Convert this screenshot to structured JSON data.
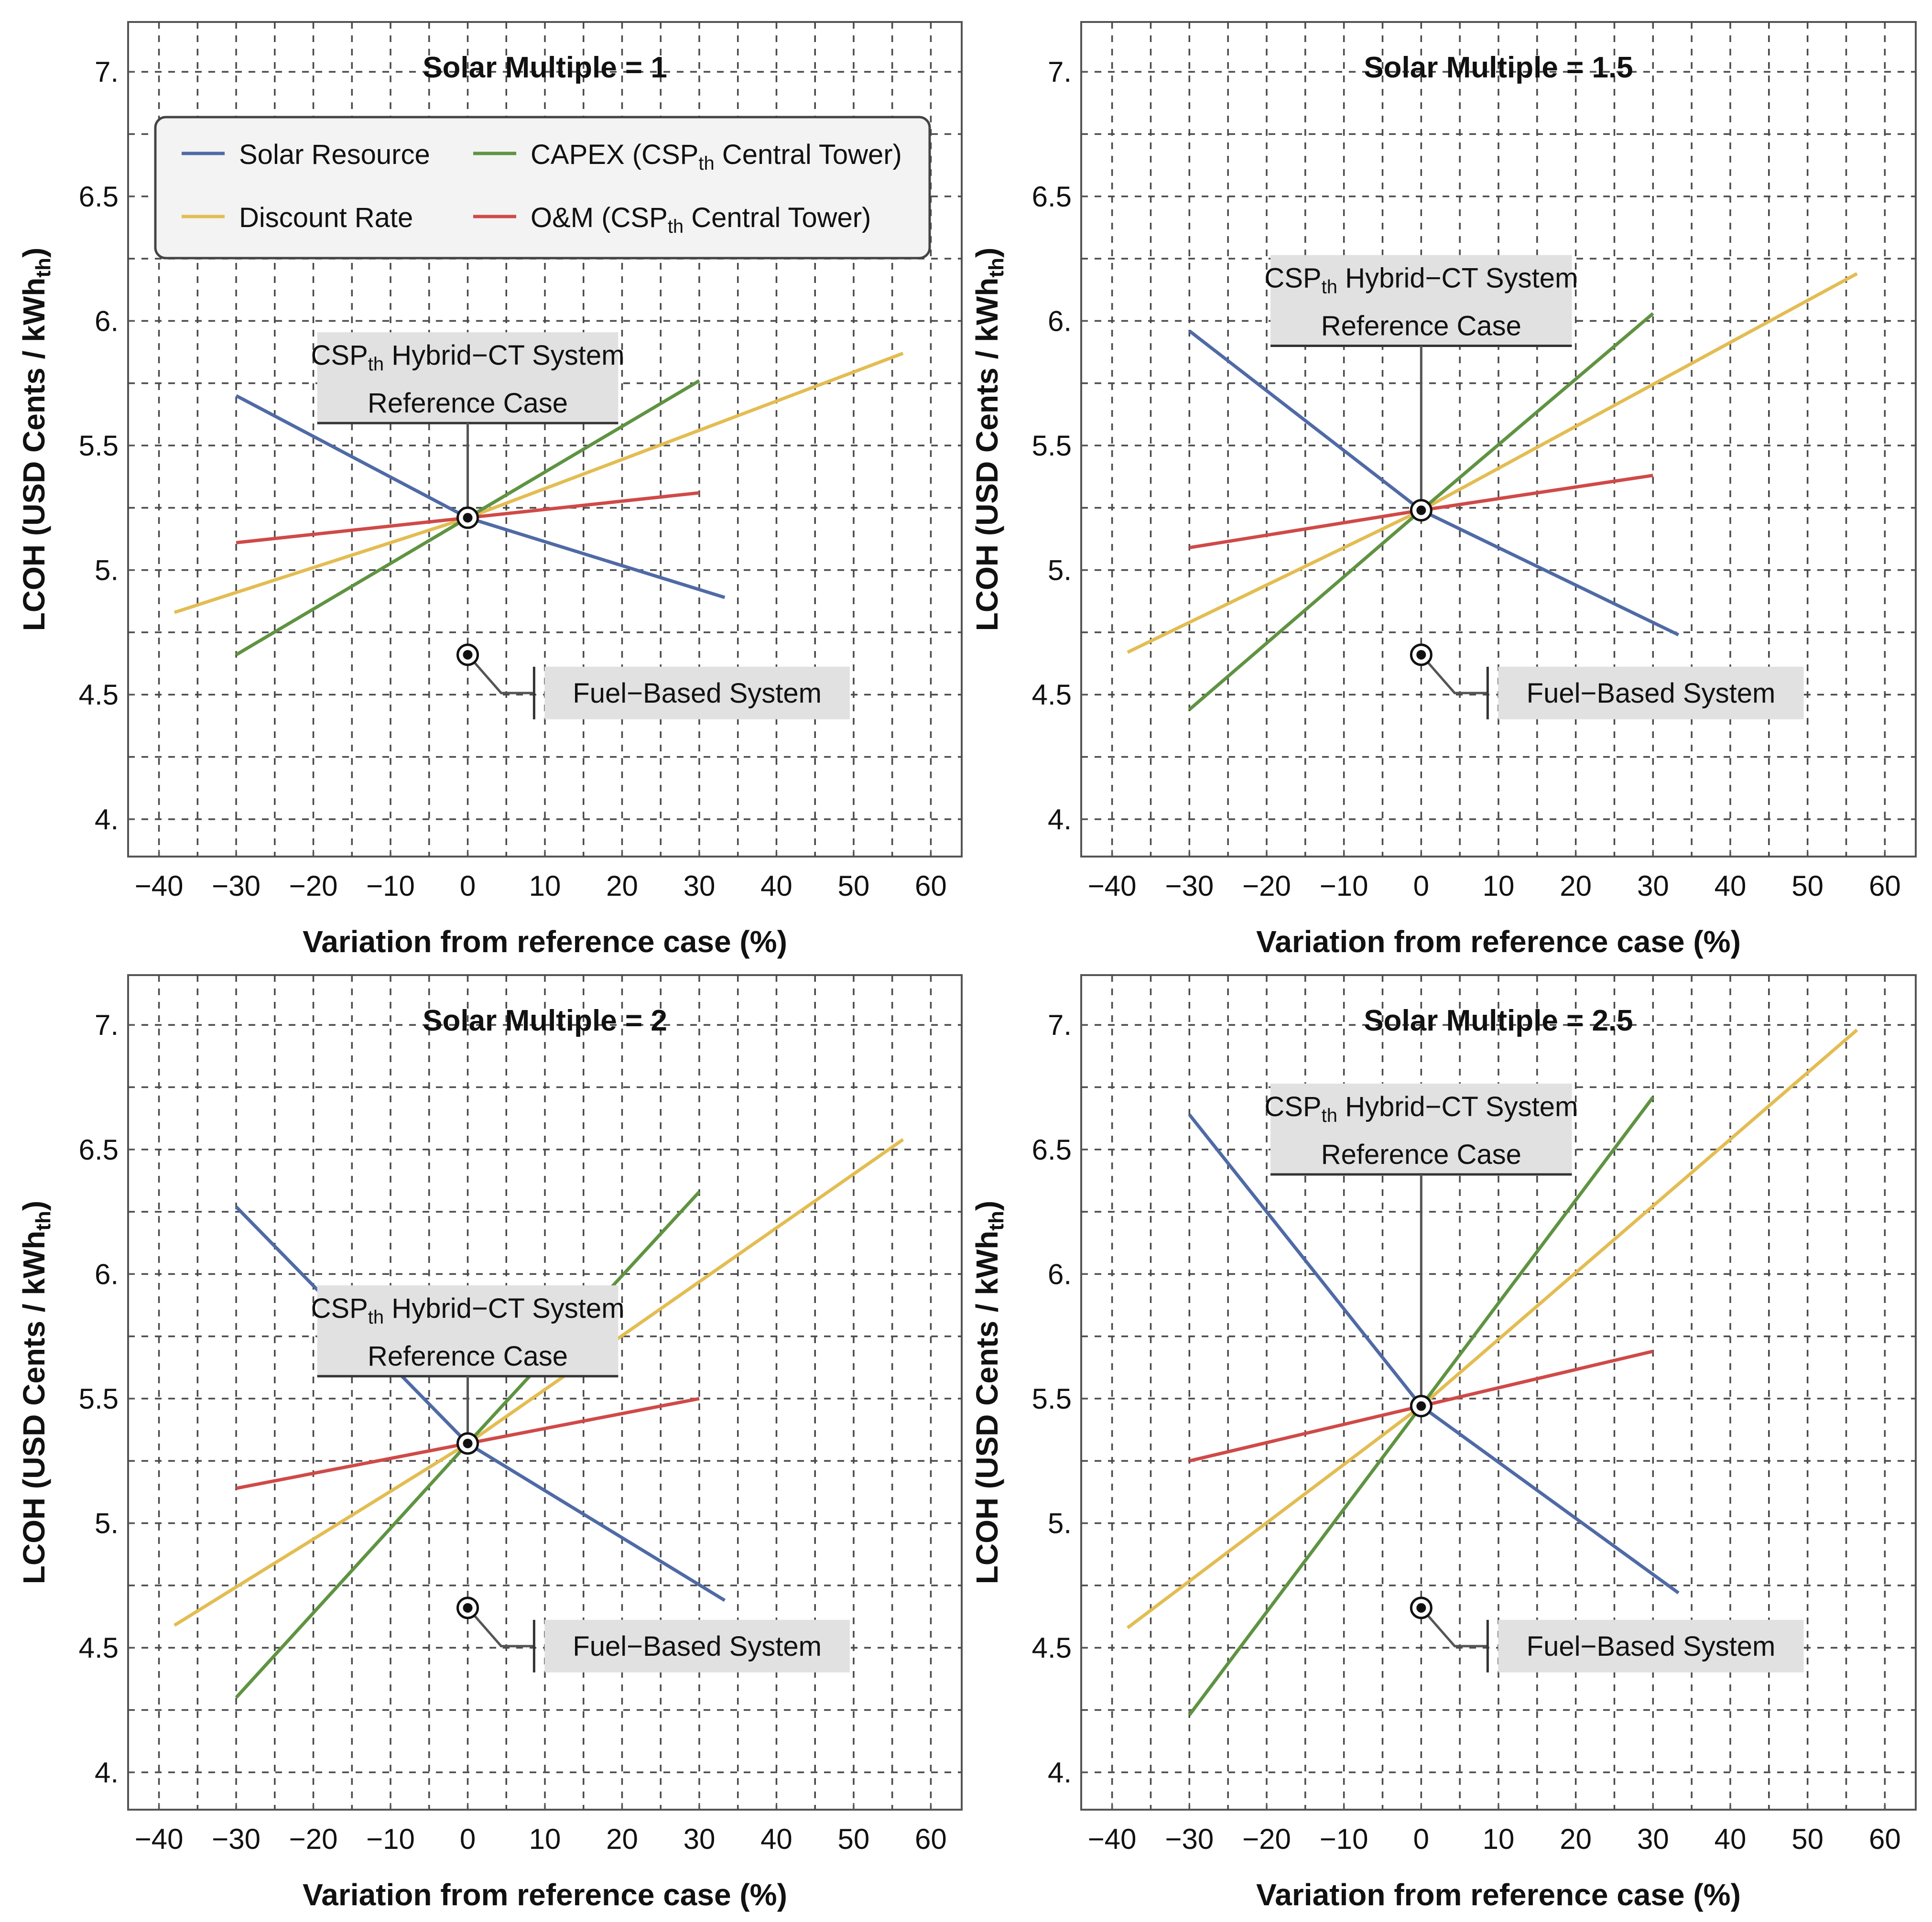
{
  "labels": {
    "reference_line1_main": "CSP",
    "reference_line1_sub": "th",
    "reference_line1_rest": " Hybrid−CT System",
    "reference_line2": "Reference Case",
    "fuel_label": "Fuel−Based System",
    "x_axis_title": "Variation from reference case (%)",
    "y_axis_title_main": "LCOH (USD Cents / kWh",
    "y_axis_title_sub": "th",
    "y_axis_title_end": ")"
  },
  "legend": [
    {
      "key": "solar",
      "label": "Solar Resource"
    },
    {
      "key": "capex",
      "label": "CAPEX (CSP",
      "sub": "th",
      "rest": " Central Tower)"
    },
    {
      "key": "discount",
      "label": "Discount Rate"
    },
    {
      "key": "om",
      "label": "O&M (CSP",
      "sub": "th",
      "rest": " Central Tower)"
    }
  ],
  "colors": {
    "solar": "#4f6aa5",
    "capex": "#5f9342",
    "discount": "#e3bd53",
    "om": "#cf4a48",
    "grid": "#4a4a4a"
  },
  "chart_data": [
    {
      "type": "line",
      "title": "Solar Multiple = 1",
      "xlabel": "Variation from reference case (%)",
      "ylabel": "LCOH (USD Cents / kWhth)",
      "xlim": [
        -44,
        64
      ],
      "ylim": [
        3.85,
        7.2
      ],
      "x_ticks": [
        -40,
        -30,
        -20,
        -10,
        0,
        10,
        20,
        30,
        40,
        50,
        60
      ],
      "x_tick_labels": [
        "−40",
        "−30",
        "−20",
        "−10",
        "0",
        "10",
        "20",
        "30",
        "40",
        "50",
        "60"
      ],
      "y_ticks": [
        4,
        4.5,
        5,
        5.5,
        6,
        6.5,
        7
      ],
      "y_tick_labels": [
        "4.",
        "4.5",
        "5.",
        "5.5",
        "6.",
        "6.5",
        "7."
      ],
      "grid": true,
      "legend_position": "top-left",
      "series": [
        {
          "key": "solar",
          "name": "Solar Resource",
          "x": [
            -30,
            0,
            33.3
          ],
          "y": [
            5.7,
            5.21,
            4.89
          ]
        },
        {
          "key": "capex",
          "name": "CAPEX (CSPth Central Tower)",
          "x": [
            -30,
            0,
            30
          ],
          "y": [
            4.66,
            5.21,
            5.76
          ]
        },
        {
          "key": "discount",
          "name": "Discount Rate",
          "x": [
            -38,
            0,
            56.4
          ],
          "y": [
            4.83,
            5.21,
            5.87
          ]
        },
        {
          "key": "om",
          "name": "O&M (CSPth Central Tower)",
          "x": [
            -30,
            0,
            30
          ],
          "y": [
            5.11,
            5.21,
            5.31
          ]
        }
      ],
      "reference_point": [
        0,
        5.21
      ],
      "fuel_point": [
        0,
        4.66
      ]
    },
    {
      "type": "line",
      "title": "Solar Multiple = 1.5",
      "xlabel": "Variation from reference case (%)",
      "ylabel": "LCOH (USD Cents / kWhth)",
      "xlim": [
        -44,
        64
      ],
      "ylim": [
        3.85,
        7.2
      ],
      "x_ticks": [
        -40,
        -30,
        -20,
        -10,
        0,
        10,
        20,
        30,
        40,
        50,
        60
      ],
      "x_tick_labels": [
        "−40",
        "−30",
        "−20",
        "−10",
        "0",
        "10",
        "20",
        "30",
        "40",
        "50",
        "60"
      ],
      "y_ticks": [
        4,
        4.5,
        5,
        5.5,
        6,
        6.5,
        7
      ],
      "y_tick_labels": [
        "4.",
        "4.5",
        "5.",
        "5.5",
        "6.",
        "6.5",
        "7."
      ],
      "grid": true,
      "series": [
        {
          "key": "solar",
          "name": "Solar Resource",
          "x": [
            -30,
            0,
            33.3
          ],
          "y": [
            5.96,
            5.24,
            4.74
          ]
        },
        {
          "key": "capex",
          "name": "CAPEX (CSPth Central Tower)",
          "x": [
            -30,
            0,
            30
          ],
          "y": [
            4.44,
            5.24,
            6.03
          ]
        },
        {
          "key": "discount",
          "name": "Discount Rate",
          "x": [
            -38,
            0,
            56.4
          ],
          "y": [
            4.67,
            5.24,
            6.19
          ]
        },
        {
          "key": "om",
          "name": "O&M (CSPth Central Tower)",
          "x": [
            -30,
            0,
            30
          ],
          "y": [
            5.09,
            5.24,
            5.38
          ]
        }
      ],
      "reference_point": [
        0,
        5.24
      ],
      "fuel_point": [
        0,
        4.66
      ]
    },
    {
      "type": "line",
      "title": "Solar Multiple = 2",
      "xlabel": "Variation from reference case (%)",
      "ylabel": "LCOH (USD Cents / kWhth)",
      "xlim": [
        -44,
        64
      ],
      "ylim": [
        3.85,
        7.2
      ],
      "x_ticks": [
        -40,
        -30,
        -20,
        -10,
        0,
        10,
        20,
        30,
        40,
        50,
        60
      ],
      "x_tick_labels": [
        "−40",
        "−30",
        "−20",
        "−10",
        "0",
        "10",
        "20",
        "30",
        "40",
        "50",
        "60"
      ],
      "y_ticks": [
        4,
        4.5,
        5,
        5.5,
        6,
        6.5,
        7
      ],
      "y_tick_labels": [
        "4.",
        "4.5",
        "5.",
        "5.5",
        "6.",
        "6.5",
        "7."
      ],
      "grid": true,
      "series": [
        {
          "key": "solar",
          "name": "Solar Resource",
          "x": [
            -30,
            0,
            33.3
          ],
          "y": [
            6.27,
            5.32,
            4.69
          ]
        },
        {
          "key": "capex",
          "name": "CAPEX (CSPth Central Tower)",
          "x": [
            -30,
            0,
            30
          ],
          "y": [
            4.3,
            5.32,
            6.33
          ]
        },
        {
          "key": "discount",
          "name": "Discount Rate",
          "x": [
            -38,
            0,
            56.4
          ],
          "y": [
            4.59,
            5.32,
            6.54
          ]
        },
        {
          "key": "om",
          "name": "O&M (CSPth Central Tower)",
          "x": [
            -30,
            0,
            30
          ],
          "y": [
            5.14,
            5.32,
            5.5
          ]
        }
      ],
      "reference_point": [
        0,
        5.32
      ],
      "fuel_point": [
        0,
        4.66
      ]
    },
    {
      "type": "line",
      "title": "Solar Multiple = 2.5",
      "xlabel": "Variation from reference case (%)",
      "ylabel": "LCOH (USD Cents / kWhth)",
      "xlim": [
        -44,
        64
      ],
      "ylim": [
        3.85,
        7.2
      ],
      "x_ticks": [
        -40,
        -30,
        -20,
        -10,
        0,
        10,
        20,
        30,
        40,
        50,
        60
      ],
      "x_tick_labels": [
        "−40",
        "−30",
        "−20",
        "−10",
        "0",
        "10",
        "20",
        "30",
        "40",
        "50",
        "60"
      ],
      "y_ticks": [
        4,
        4.5,
        5,
        5.5,
        6,
        6.5,
        7
      ],
      "y_tick_labels": [
        "4.",
        "4.5",
        "5.",
        "5.5",
        "6.",
        "6.5",
        "7."
      ],
      "grid": true,
      "series": [
        {
          "key": "solar",
          "name": "Solar Resource",
          "x": [
            -30,
            0,
            33.3
          ],
          "y": [
            6.64,
            5.47,
            4.72
          ]
        },
        {
          "key": "capex",
          "name": "CAPEX (CSPth Central Tower)",
          "x": [
            -30,
            0,
            30
          ],
          "y": [
            4.23,
            5.47,
            6.71
          ]
        },
        {
          "key": "discount",
          "name": "Discount Rate",
          "x": [
            -38,
            0,
            56.4
          ],
          "y": [
            4.58,
            5.47,
            6.98
          ]
        },
        {
          "key": "om",
          "name": "O&M (CSPth Central Tower)",
          "x": [
            -30,
            0,
            30
          ],
          "y": [
            5.25,
            5.47,
            5.69
          ]
        }
      ],
      "reference_point": [
        0,
        5.47
      ],
      "fuel_point": [
        0,
        4.66
      ]
    }
  ]
}
